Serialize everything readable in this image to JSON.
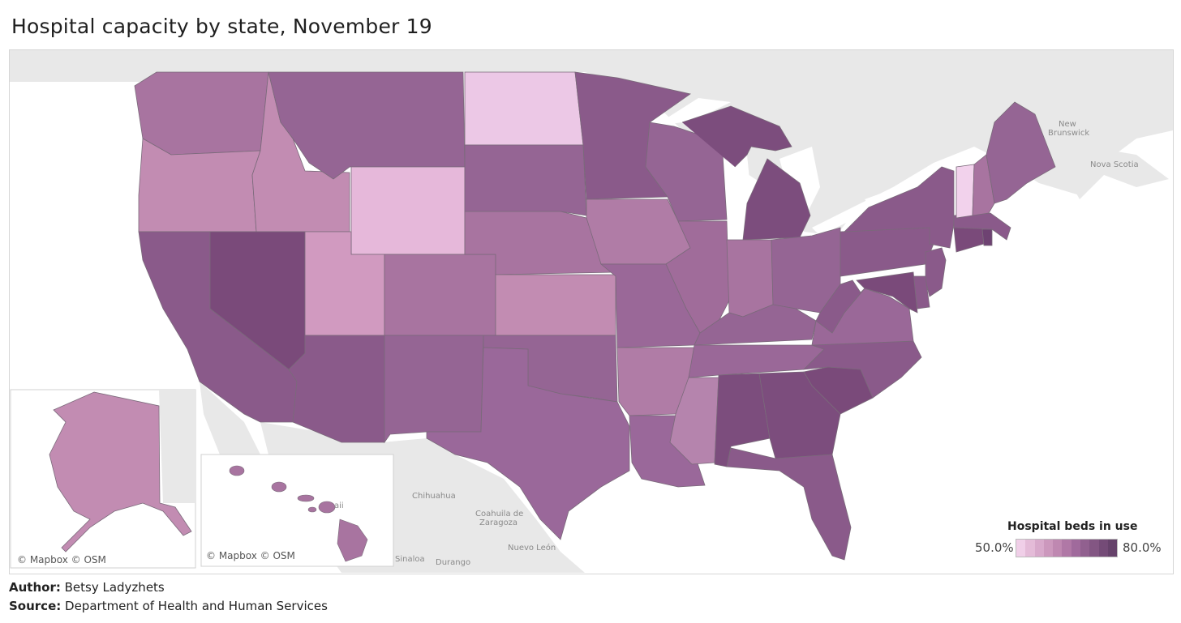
{
  "title": "Hospital capacity by state, November 19",
  "legend": {
    "title": "Hospital beds in use",
    "min_label": "50.0%",
    "max_label": "80.0%",
    "colors": [
      "#f0cfe8",
      "#e4bbd8",
      "#d8a9cb",
      "#cc98bd",
      "#bf88b1",
      "#b078a6",
      "#a06a9c",
      "#91608f",
      "#835683",
      "#744b77",
      "#66426b"
    ]
  },
  "place_labels": {
    "new_brunswick_1": "New",
    "new_brunswick_2": "Brunswick",
    "nova_scotia": "Nova Scotia",
    "chihuahua": "Chihuahua",
    "coahuila_1": "Coahuila de",
    "coahuila_2": "Zaragoza",
    "nuevo_leon": "Nuevo León",
    "sinaloa": "Sinaloa",
    "durango": "Durango",
    "hawaii_partial": "aii"
  },
  "credits": {
    "alaska_inset": "© Mapbox © OSM",
    "hawaii_inset": "© Mapbox © OSM"
  },
  "footer": {
    "author_label": "Author:",
    "author": "Betsy Ladyzhets",
    "source_label": "Source:",
    "source": "Department of Health and Human Services"
  },
  "map_data": {
    "metric": "Hospital beds in use",
    "scale": [
      0.5,
      0.8
    ],
    "state_fills": {
      "WA": "#a874a0",
      "OR": "#c28cb2",
      "ID": "#c28cb2",
      "MT": "#956594",
      "WY": "#e6b8da",
      "ND": "#ecc8e6",
      "SD": "#956594",
      "MN": "#8a5a8a",
      "WI": "#956594",
      "MI": "#7c4d7d",
      "CA": "#8a5a8a",
      "NV": "#7a4a7a",
      "UT": "#d19ac0",
      "CO": "#a874a0",
      "NE": "#a874a0",
      "KS": "#c28cb2",
      "IA": "#b07ca6",
      "IL": "#a06c9a",
      "IN": "#a874a0",
      "OH": "#956594",
      "AZ": "#8a5a8a",
      "NM": "#956594",
      "OK": "#956594",
      "TX": "#9a689a",
      "MO": "#9a6898",
      "AR": "#b07ca6",
      "LA": "#9a689a",
      "MS": "#b584ad",
      "AL": "#7c4d7d",
      "GA": "#7c4d7d",
      "SC": "#7a4a7a",
      "FL": "#8a5a8a",
      "TN": "#9a6898",
      "KY": "#956594",
      "NC": "#8a5a8a",
      "VA": "#9a6898",
      "WV": "#8a5a8a",
      "PA": "#8a5a8a",
      "NY": "#8a5a8a",
      "NJ": "#8a5a8a",
      "DE": "#8a5a8a",
      "MD": "#7a4a7a",
      "CT": "#7a4a7a",
      "RI": "#6e4272",
      "MA": "#8a5a8a",
      "VT": "#f2d2ec",
      "NH": "#a874a0",
      "ME": "#956594",
      "AK": "#c28cb2",
      "HI": "#a874a0"
    }
  }
}
